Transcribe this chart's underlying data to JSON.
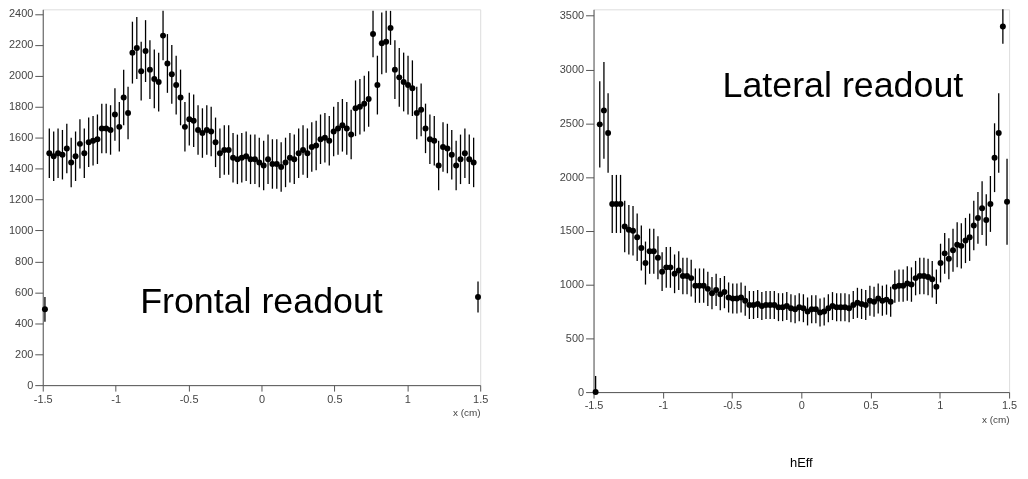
{
  "chart_data": [
    {
      "type": "scatter",
      "xlabel": "x (cm)",
      "annotations": [
        "Frontal readout"
      ],
      "x": [
        -1.485,
        -1.455,
        -1.425,
        -1.395,
        -1.365,
        -1.335,
        -1.305,
        -1.275,
        -1.245,
        -1.215,
        -1.185,
        -1.155,
        -1.125,
        -1.095,
        -1.065,
        -1.035,
        -1.005,
        -0.975,
        -0.945,
        -0.915,
        -0.885,
        -0.855,
        -0.825,
        -0.795,
        -0.765,
        -0.735,
        -0.705,
        -0.675,
        -0.645,
        -0.615,
        -0.585,
        -0.555,
        -0.525,
        -0.495,
        -0.465,
        -0.435,
        -0.405,
        -0.375,
        -0.345,
        -0.315,
        -0.285,
        -0.255,
        -0.225,
        -0.195,
        -0.165,
        -0.135,
        -0.105,
        -0.075,
        -0.045,
        -0.015,
        0.015,
        0.045,
        0.075,
        0.105,
        0.135,
        0.165,
        0.195,
        0.225,
        0.255,
        0.285,
        0.315,
        0.345,
        0.375,
        0.405,
        0.435,
        0.465,
        0.495,
        0.525,
        0.555,
        0.585,
        0.615,
        0.645,
        0.675,
        0.705,
        0.735,
        0.765,
        0.795,
        0.825,
        0.855,
        0.885,
        0.915,
        0.945,
        0.975,
        1.005,
        1.035,
        1.065,
        1.095,
        1.125,
        1.155,
        1.185,
        1.215,
        1.245,
        1.275,
        1.305,
        1.335,
        1.365,
        1.395,
        1.425,
        1.455,
        1.485
      ],
      "series": [
        {
          "color": "#000000",
          "values": [
            490,
            1500,
            1480,
            1500,
            1490,
            1530,
            1440,
            1480,
            1560,
            1500,
            1570,
            1580,
            1590,
            1660,
            1660,
            1650,
            1750,
            1670,
            1860,
            1760,
            2150,
            2180,
            2030,
            2160,
            2040,
            1980,
            1960,
            2260,
            2080,
            2010,
            1940,
            1860,
            1670,
            1720,
            1710,
            1650,
            1630,
            1650,
            1640,
            1570,
            1500,
            1520,
            1520,
            1470,
            1460,
            1470,
            1480,
            1460,
            1460,
            1440,
            1420,
            1460,
            1430,
            1430,
            1410,
            1440,
            1470,
            1460,
            1500,
            1520,
            1500,
            1540,
            1550,
            1590,
            1600,
            1580,
            1640,
            1660,
            1680,
            1660,
            1620,
            1790,
            1800,
            1820,
            1850,
            2270,
            1940,
            2210,
            2220,
            2310,
            2040,
            1990,
            1960,
            1940,
            1920,
            1760,
            1780,
            1660,
            1590,
            1580,
            1420,
            1540,
            1530,
            1490,
            1420,
            1460,
            1500,
            1460,
            1440,
            570
          ],
          "errors": [
            80,
            160,
            160,
            160,
            160,
            160,
            160,
            160,
            160,
            160,
            160,
            160,
            160,
            160,
            160,
            160,
            170,
            160,
            180,
            170,
            200,
            200,
            190,
            200,
            190,
            190,
            190,
            160,
            190,
            190,
            190,
            180,
            160,
            170,
            170,
            160,
            160,
            160,
            160,
            160,
            160,
            160,
            160,
            160,
            160,
            160,
            160,
            160,
            160,
            160,
            160,
            160,
            160,
            160,
            160,
            160,
            160,
            160,
            160,
            160,
            160,
            160,
            160,
            160,
            160,
            160,
            160,
            170,
            170,
            170,
            160,
            180,
            180,
            180,
            180,
            150,
            190,
            200,
            200,
            110,
            190,
            190,
            190,
            190,
            180,
            170,
            170,
            160,
            160,
            160,
            160,
            160,
            160,
            160,
            160,
            160,
            160,
            160,
            160,
            100
          ]
        }
      ],
      "xlim": [
        -1.5,
        1.5
      ],
      "xticks": [
        -1.5,
        -1,
        -0.5,
        0,
        0.5,
        1,
        1.5
      ],
      "ylim": [
        0,
        2430
      ],
      "yticks": [
        0,
        200,
        400,
        600,
        800,
        1000,
        1200,
        1400,
        1600,
        1800,
        2000,
        2200,
        2400
      ],
      "marker": "circle",
      "grid": false
    },
    {
      "type": "scatter",
      "xlabel": "x (cm)",
      "title": "hEff",
      "annotations": [
        "Lateral readout"
      ],
      "x": [
        -1.485,
        -1.455,
        -1.425,
        -1.395,
        -1.365,
        -1.335,
        -1.305,
        -1.275,
        -1.245,
        -1.215,
        -1.185,
        -1.155,
        -1.125,
        -1.095,
        -1.065,
        -1.035,
        -1.005,
        -0.975,
        -0.945,
        -0.915,
        -0.885,
        -0.855,
        -0.825,
        -0.795,
        -0.765,
        -0.735,
        -0.705,
        -0.675,
        -0.645,
        -0.615,
        -0.585,
        -0.555,
        -0.525,
        -0.495,
        -0.465,
        -0.435,
        -0.405,
        -0.375,
        -0.345,
        -0.315,
        -0.285,
        -0.255,
        -0.225,
        -0.195,
        -0.165,
        -0.135,
        -0.105,
        -0.075,
        -0.045,
        -0.015,
        0.015,
        0.045,
        0.075,
        0.105,
        0.135,
        0.165,
        0.195,
        0.225,
        0.255,
        0.285,
        0.315,
        0.345,
        0.375,
        0.405,
        0.435,
        0.465,
        0.495,
        0.525,
        0.555,
        0.585,
        0.615,
        0.645,
        0.675,
        0.705,
        0.735,
        0.765,
        0.795,
        0.825,
        0.855,
        0.885,
        0.915,
        0.945,
        0.975,
        1.005,
        1.035,
        1.065,
        1.095,
        1.125,
        1.155,
        1.185,
        1.215,
        1.245,
        1.275,
        1.305,
        1.335,
        1.365,
        1.395,
        1.425,
        1.455,
        1.485
      ],
      "series": [
        {
          "color": "#000000",
          "values": [
            0,
            2490,
            2620,
            2410,
            1750,
            1750,
            1750,
            1540,
            1510,
            1500,
            1440,
            1340,
            1200,
            1310,
            1310,
            1250,
            1120,
            1160,
            1160,
            1100,
            1130,
            1080,
            1080,
            1060,
            990,
            990,
            990,
            960,
            920,
            950,
            910,
            930,
            880,
            870,
            870,
            880,
            850,
            810,
            810,
            820,
            800,
            810,
            810,
            810,
            790,
            790,
            800,
            780,
            770,
            790,
            780,
            750,
            770,
            770,
            740,
            750,
            780,
            800,
            790,
            790,
            790,
            780,
            810,
            830,
            820,
            810,
            850,
            840,
            870,
            850,
            860,
            840,
            980,
            990,
            990,
            1010,
            1000,
            1060,
            1080,
            1080,
            1070,
            1050,
            980,
            1200,
            1290,
            1240,
            1320,
            1370,
            1360,
            1410,
            1440,
            1550,
            1620,
            1710,
            1600,
            1750,
            2180,
            2410,
            3400,
            1770
          ],
          "errors": [
            [
              0,
              150
            ],
            400,
            450,
            370,
            270,
            270,
            270,
            240,
            230,
            230,
            220,
            210,
            200,
            210,
            210,
            200,
            180,
            190,
            190,
            180,
            180,
            170,
            170,
            170,
            160,
            160,
            160,
            160,
            150,
            150,
            150,
            150,
            140,
            140,
            140,
            140,
            140,
            130,
            130,
            130,
            130,
            130,
            130,
            130,
            130,
            130,
            130,
            130,
            130,
            130,
            130,
            130,
            130,
            130,
            130,
            130,
            130,
            130,
            130,
            130,
            130,
            130,
            130,
            140,
            140,
            140,
            140,
            140,
            140,
            140,
            140,
            140,
            150,
            150,
            150,
            160,
            160,
            160,
            170,
            170,
            170,
            170,
            160,
            180,
            190,
            190,
            200,
            210,
            210,
            210,
            220,
            230,
            240,
            250,
            240,
            260,
            320,
            370,
            160,
            400
          ]
        }
      ],
      "xlim": [
        -1.5,
        1.5
      ],
      "xticks": [
        -1.5,
        -1,
        -0.5,
        0,
        0.5,
        1,
        1.5
      ],
      "ylim": [
        0,
        3560
      ],
      "yticks": [
        0,
        500,
        1000,
        1500,
        2000,
        2500,
        3000,
        3500
      ],
      "marker": "circle",
      "grid": false
    }
  ]
}
